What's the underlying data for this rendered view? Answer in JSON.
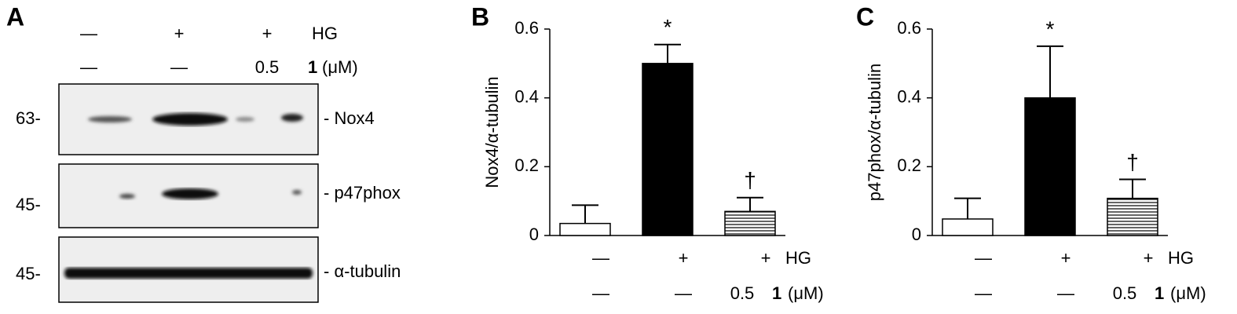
{
  "blot": {
    "panel_label": "A",
    "treatment_rows": [
      {
        "labels": [
          "—",
          "+",
          "+"
        ],
        "name": "HG"
      },
      {
        "labels": [
          "—",
          "—",
          "0.5"
        ],
        "name": "1",
        "unit": "(μM)"
      }
    ],
    "bands": [
      {
        "marker": "63-",
        "name": "- Nox4"
      },
      {
        "marker": "45-",
        "name": "- p47phox"
      },
      {
        "marker": "45-",
        "name": "- α-tubulin"
      }
    ]
  },
  "chart_data": [
    {
      "type": "bar",
      "panel_label": "B",
      "ylabel": "Nox4/α-tubulin",
      "categories": [
        null,
        null,
        null
      ],
      "values": [
        0.035,
        0.5,
        0.07
      ],
      "errors": [
        0.053,
        0.055,
        0.04
      ],
      "fills": [
        "#ffffff",
        "#000000",
        "hatch"
      ],
      "annotations": [
        null,
        "*",
        "†"
      ],
      "ylim": [
        0,
        0.6
      ],
      "yticks": [
        0,
        0.2,
        0.4,
        0.6
      ],
      "treatment_rows": [
        {
          "labels": [
            "—",
            "+",
            "+"
          ],
          "name": "HG"
        },
        {
          "labels": [
            "—",
            "—",
            "0.5"
          ],
          "name": "1",
          "unit": "(μM)"
        }
      ]
    },
    {
      "type": "bar",
      "panel_label": "C",
      "ylabel": "p47phox/α-tubulin",
      "categories": [
        null,
        null,
        null
      ],
      "values": [
        0.048,
        0.4,
        0.108
      ],
      "errors": [
        0.06,
        0.15,
        0.055
      ],
      "fills": [
        "#ffffff",
        "#000000",
        "hatch"
      ],
      "annotations": [
        null,
        "*",
        "†"
      ],
      "ylim": [
        0,
        0.6
      ],
      "yticks": [
        0,
        0.2,
        0.4,
        0.6
      ],
      "treatment_rows": [
        {
          "labels": [
            "—",
            "+",
            "+"
          ],
          "name": "HG"
        },
        {
          "labels": [
            "—",
            "—",
            "0.5"
          ],
          "name": "1",
          "unit": "(μM)"
        }
      ]
    }
  ]
}
